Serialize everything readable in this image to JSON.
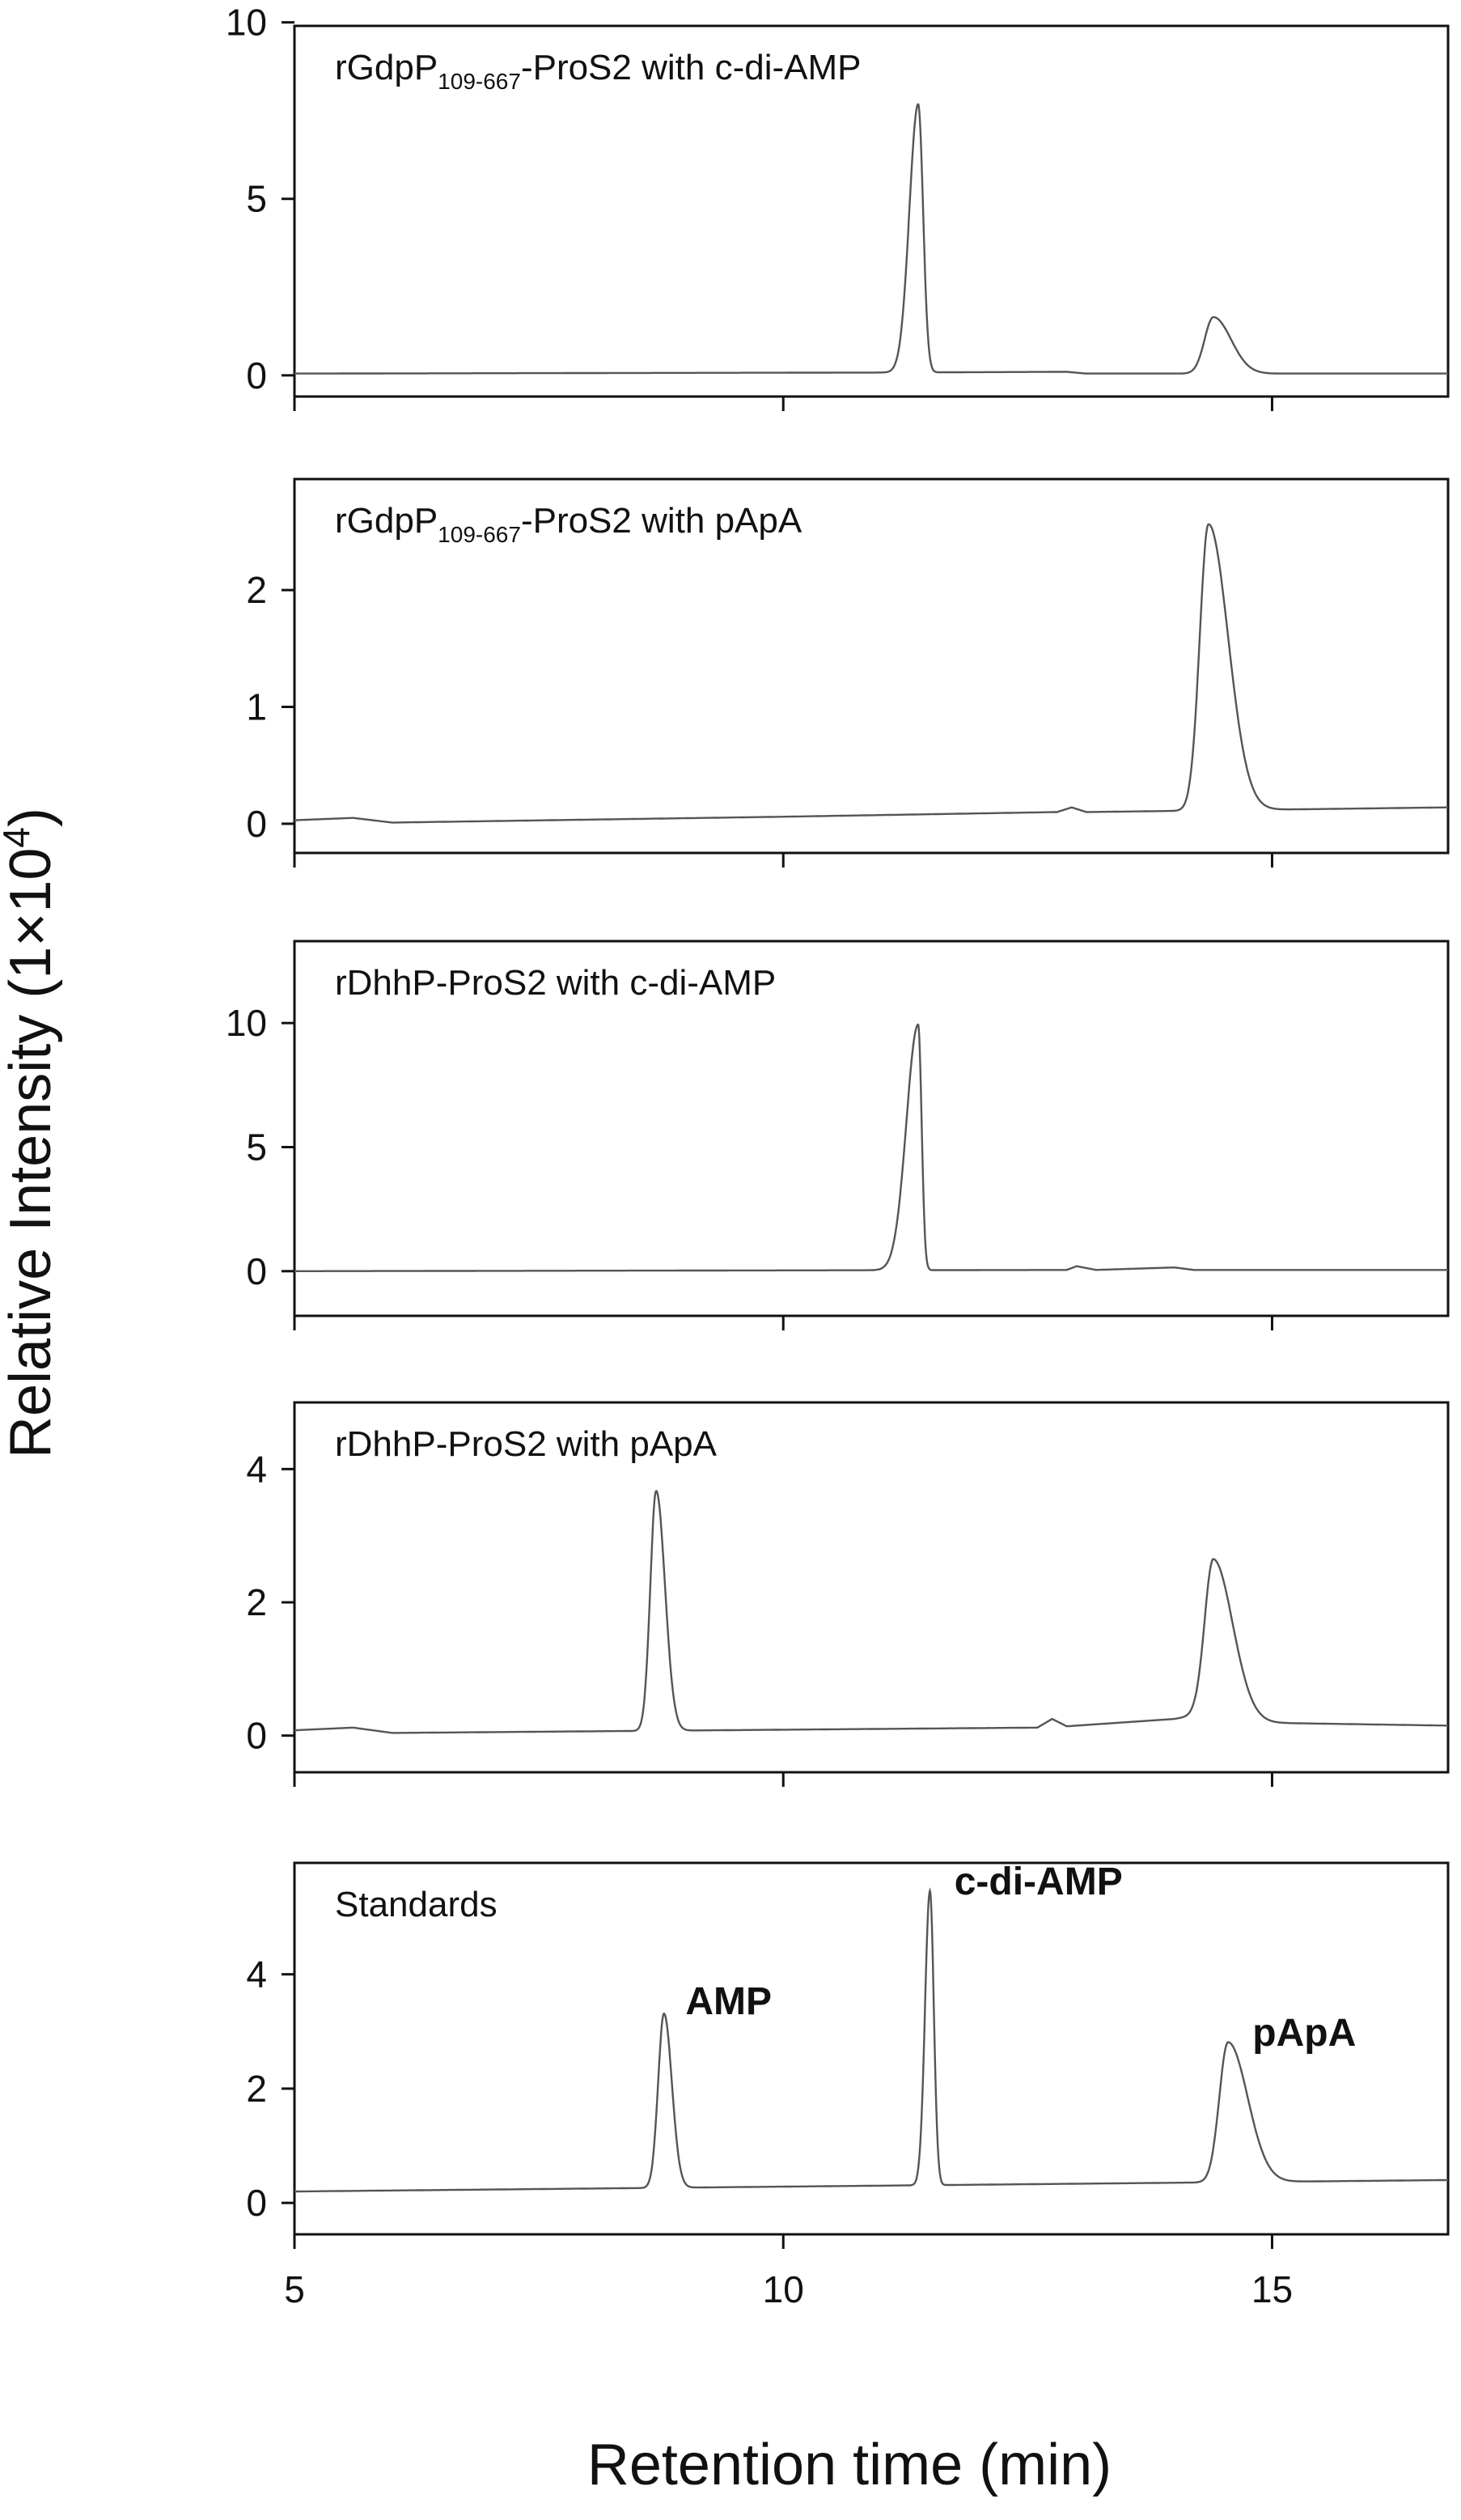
{
  "figure": {
    "ylabel": "Relative Intensity (1×10",
    "ylabel_sup": "4",
    "ylabel_close": ")",
    "xlabel": "Retention time (min)"
  },
  "chart_data": [
    {
      "type": "line",
      "title": "rGdpP",
      "title_sub": "109-667",
      "title_rest": "-ProS2 with c-di-AMP",
      "xlim": [
        5,
        16.8
      ],
      "ylim": [
        -0.6,
        9.9
      ],
      "yticks": [
        0,
        5,
        10
      ],
      "xticks": [
        5,
        10,
        15
      ],
      "baseline": [
        [
          5.0,
          0.05
        ],
        [
          11.0,
          0.08
        ],
        [
          12.9,
          0.1
        ],
        [
          13.1,
          0.05
        ],
        [
          16.8,
          0.05
        ]
      ],
      "peaks": [
        {
          "x": 11.38,
          "height": 7.6,
          "w_left": 0.09,
          "w_right": 0.05
        },
        {
          "x": 14.4,
          "height": 1.6,
          "w_left": 0.09,
          "w_right": 0.18
        }
      ]
    },
    {
      "type": "line",
      "title": "rGdpP",
      "title_sub": "109-667",
      "title_rest": "-ProS2 with pApA",
      "xlim": [
        5,
        16.8
      ],
      "ylim": [
        -0.25,
        2.95
      ],
      "yticks": [
        0,
        1,
        2
      ],
      "xticks": [
        5,
        10,
        15
      ],
      "baseline": [
        [
          5.0,
          0.03
        ],
        [
          5.6,
          0.05
        ],
        [
          6.0,
          0.01
        ],
        [
          10.0,
          0.06
        ],
        [
          12.8,
          0.1
        ],
        [
          12.95,
          0.14
        ],
        [
          13.1,
          0.1
        ],
        [
          16.8,
          0.14
        ]
      ],
      "peaks": [
        {
          "x": 14.35,
          "height": 2.45,
          "w_left": 0.09,
          "w_right": 0.2
        }
      ]
    },
    {
      "type": "line",
      "title": "rDhhP-ProS2 with c-di-AMP",
      "xlim": [
        5,
        16.8
      ],
      "ylim": [
        -1.8,
        13.3
      ],
      "yticks": [
        0,
        5,
        10
      ],
      "xticks": [
        5,
        10,
        15
      ],
      "baseline": [
        [
          5.0,
          0.0
        ],
        [
          12.9,
          0.05
        ],
        [
          13.0,
          0.2
        ],
        [
          13.2,
          0.05
        ],
        [
          14.0,
          0.15
        ],
        [
          14.2,
          0.05
        ],
        [
          16.8,
          0.05
        ]
      ],
      "peaks": [
        {
          "x": 11.38,
          "height": 9.9,
          "w_left": 0.12,
          "w_right": 0.035
        }
      ]
    },
    {
      "type": "line",
      "title": "rDhhP-ProS2 with pApA",
      "xlim": [
        5,
        16.8
      ],
      "ylim": [
        -0.55,
        5.0
      ],
      "yticks": [
        0,
        2,
        4
      ],
      "xticks": [
        5,
        10,
        15
      ],
      "baseline": [
        [
          5.0,
          0.08
        ],
        [
          5.6,
          0.12
        ],
        [
          6.0,
          0.04
        ],
        [
          12.6,
          0.12
        ],
        [
          12.75,
          0.25
        ],
        [
          12.9,
          0.14
        ],
        [
          14.0,
          0.25
        ],
        [
          14.2,
          0.3
        ],
        [
          14.6,
          0.2
        ],
        [
          16.8,
          0.15
        ]
      ],
      "peaks": [
        {
          "x": 8.7,
          "height": 3.6,
          "w_left": 0.06,
          "w_right": 0.09
        },
        {
          "x": 14.4,
          "height": 2.4,
          "w_left": 0.09,
          "w_right": 0.2
        }
      ]
    },
    {
      "type": "line",
      "title": "Standards",
      "xlim": [
        5,
        16.8
      ],
      "ylim": [
        -0.55,
        5.95
      ],
      "yticks": [
        0,
        2,
        4
      ],
      "xticks": [
        5,
        10,
        15
      ],
      "xticklabels": true,
      "baseline": [
        [
          5.0,
          0.2
        ],
        [
          16.8,
          0.4
        ]
      ],
      "peaks": [
        {
          "x": 8.78,
          "height": 3.05,
          "w_left": 0.06,
          "w_right": 0.08
        },
        {
          "x": 11.5,
          "height": 5.15,
          "w_left": 0.05,
          "w_right": 0.04
        },
        {
          "x": 14.55,
          "height": 2.45,
          "w_left": 0.09,
          "w_right": 0.2
        }
      ],
      "annotations": [
        {
          "text": "AMP",
          "x": 9.0,
          "y": 3.3
        },
        {
          "text": "c-di-AMP",
          "x": 11.75,
          "y": 5.4
        },
        {
          "text": "pApA",
          "x": 14.8,
          "y": 2.75
        }
      ]
    }
  ]
}
